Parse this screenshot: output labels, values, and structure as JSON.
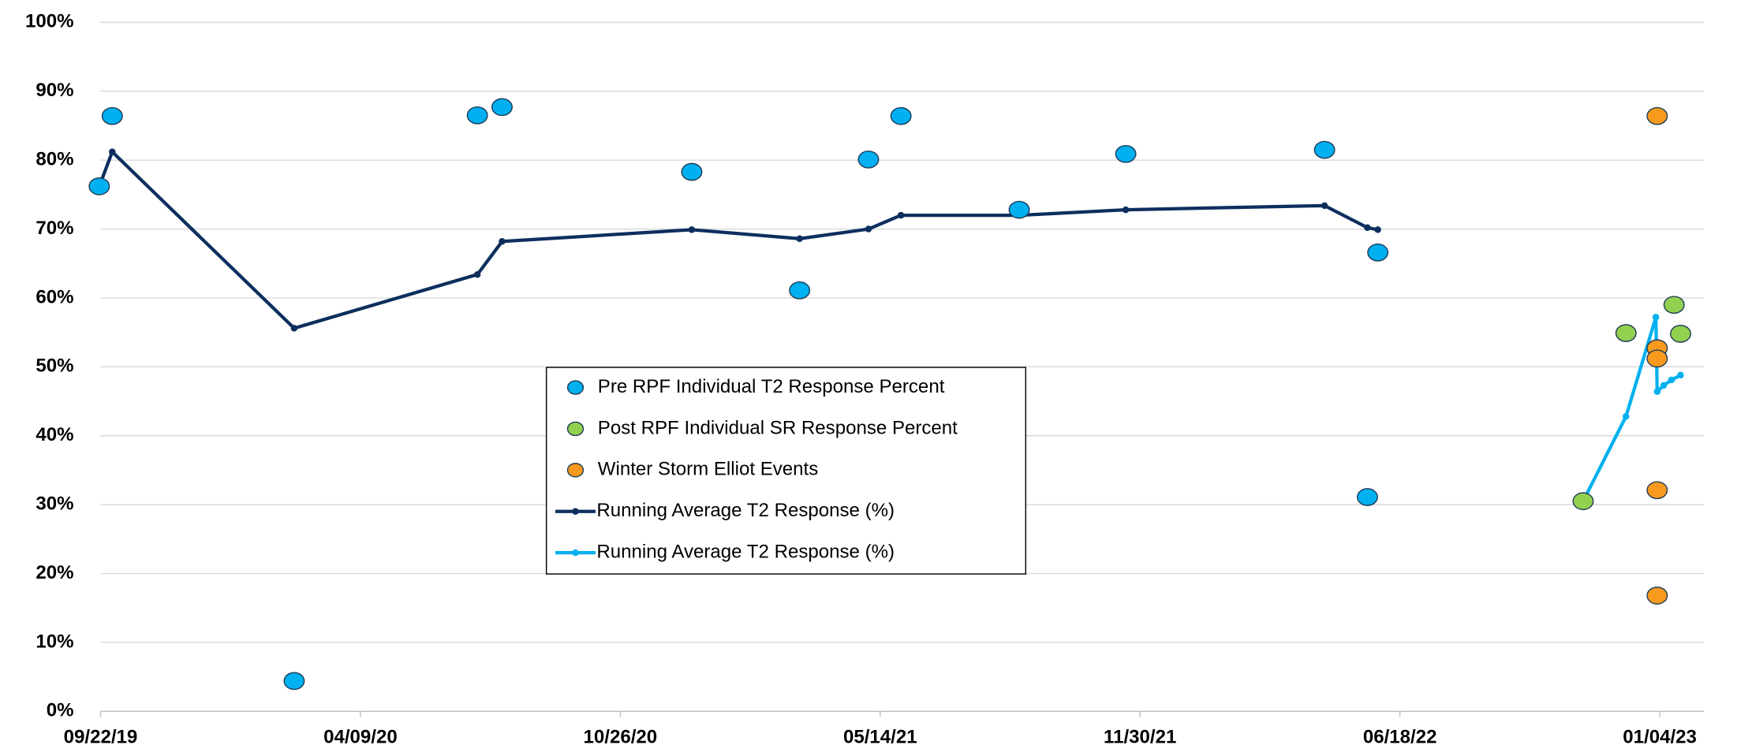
{
  "chart_data": {
    "type": "scatter",
    "xlim": [
      "09/22/19",
      "02/07/23"
    ],
    "xticks": [
      "09/22/19",
      "04/09/20",
      "10/26/20",
      "05/14/21",
      "11/30/21",
      "06/18/22",
      "01/04/23"
    ],
    "ylim": [
      0,
      100
    ],
    "yticks": [
      {
        "value": 0,
        "label": "0%"
      },
      {
        "value": 10,
        "label": "10%"
      },
      {
        "value": 20,
        "label": "20%"
      },
      {
        "value": 30,
        "label": "30%"
      },
      {
        "value": 40,
        "label": "40%"
      },
      {
        "value": 50,
        "label": "50%"
      },
      {
        "value": 60,
        "label": "60%"
      },
      {
        "value": 70,
        "label": "70%"
      },
      {
        "value": 80,
        "label": "80%"
      },
      {
        "value": 90,
        "label": "90%"
      },
      {
        "value": 100,
        "label": "100%"
      }
    ],
    "grid": true,
    "series": [
      {
        "name": "Pre RPF Individual T2 Response Percent",
        "mode": "markers",
        "color": "#00b0f0",
        "x": [
          "09/21/19",
          "10/01/19",
          "02/18/20",
          "07/08/20",
          "07/27/20",
          "12/20/20",
          "03/13/21",
          "05/05/21",
          "05/30/21",
          "08/29/21",
          "11/19/21",
          "04/21/22",
          "05/24/22",
          "06/01/22"
        ],
        "values": [
          76.2,
          86.4,
          4.4,
          86.5,
          87.7,
          78.3,
          61.1,
          80.1,
          86.4,
          72.8,
          80.9,
          81.5,
          31.1,
          66.6
        ]
      },
      {
        "name": "Post RPF Individual SR Response Percent",
        "mode": "markers",
        "color": "#92d050",
        "x": [
          "11/06/22",
          "12/09/22",
          "01/15/23",
          "01/20/23"
        ],
        "values": [
          30.5,
          54.9,
          59.0,
          54.8
        ]
      },
      {
        "name": "Winter Storm Elliot Events",
        "mode": "markers",
        "color": "#f79a1e",
        "x": [
          "01/02/23",
          "01/02/23",
          "01/02/23",
          "01/02/23",
          "01/02/23"
        ],
        "values": [
          86.4,
          52.7,
          51.2,
          32.1,
          16.8
        ]
      },
      {
        "name": "Running Average T2 Response (%)",
        "mode": "lines+markers",
        "color": "#0d2f5e",
        "x": [
          "09/21/19",
          "10/01/19",
          "02/18/20",
          "07/08/20",
          "07/27/20",
          "12/20/20",
          "03/13/21",
          "05/05/21",
          "05/30/21",
          "08/29/21",
          "11/19/21",
          "04/21/22",
          "05/24/22",
          "06/01/22"
        ],
        "values": [
          76.2,
          81.2,
          55.6,
          63.4,
          68.2,
          69.9,
          68.6,
          70.0,
          72.0,
          72.0,
          72.8,
          73.4,
          70.2,
          69.9
        ]
      },
      {
        "name": "Running Average T2 Response (%)",
        "mode": "lines+markers",
        "color": "#00b0f0",
        "x": [
          "11/06/22",
          "12/09/22",
          "01/01/23",
          "01/02/23",
          "01/07/23",
          "01/13/23",
          "01/20/23"
        ],
        "values": [
          30.5,
          42.8,
          57.2,
          46.4,
          47.3,
          48.1,
          48.8
        ]
      }
    ]
  }
}
